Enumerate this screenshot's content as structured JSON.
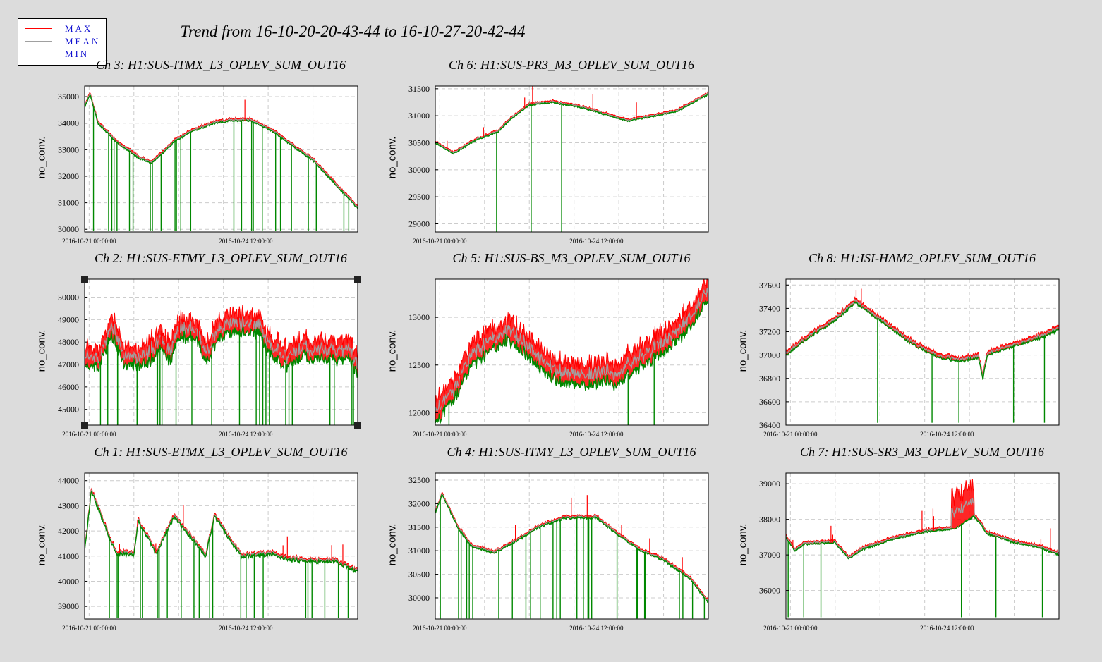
{
  "title": "Trend from 16-10-20-20-43-44 to 16-10-27-20-42-44",
  "legend": [
    {
      "label": "MAX",
      "color": "#ff0000"
    },
    {
      "label": "MEAN",
      "color": "#a0a0a0"
    },
    {
      "label": "MIN",
      "color": "#008800"
    }
  ],
  "colors": {
    "max": "#ff0000",
    "mean": "#a0a0a0",
    "min": "#008800",
    "grid": "#cccccc"
  },
  "chart_data": [
    {
      "type": "line",
      "channel": "Ch 3",
      "title": "Ch 3: H1:SUS-ITMX_L3_OPLEV_SUM_OUT16",
      "ylabel": "no_conv.",
      "xlim": [
        -0.1,
        6.0
      ],
      "ylim": [
        29900,
        35400
      ],
      "yticks": [
        30000,
        31000,
        32000,
        33000,
        34000,
        35000
      ],
      "xticks": [
        {
          "t": 0,
          "label": "2016-10-21 00:00:00"
        },
        {
          "t": 3.5,
          "label": "2016-10-24 12:00:00"
        }
      ],
      "band": 60,
      "noise": 60,
      "spikes_up": 1,
      "spikes_down": 26,
      "spike_floor": 29950,
      "min_profile": [
        [
          -0.1,
          34600
        ],
        [
          0.02,
          35100
        ],
        [
          0.2,
          34000
        ],
        [
          0.6,
          33300
        ],
        [
          1.1,
          32700
        ],
        [
          1.4,
          32500
        ],
        [
          1.6,
          32800
        ],
        [
          1.9,
          33300
        ],
        [
          2.3,
          33700
        ],
        [
          2.8,
          34000
        ],
        [
          3.2,
          34100
        ],
        [
          3.6,
          34100
        ],
        [
          4.1,
          33700
        ],
        [
          4.5,
          33200
        ],
        [
          5.0,
          32600
        ],
        [
          5.5,
          31700
        ],
        [
          6.0,
          30800
        ]
      ]
    },
    {
      "type": "line",
      "channel": "Ch 6",
      "title": "Ch 6: H1:SUS-PR3_M3_OPLEV_SUM_OUT16",
      "ylabel": "no_conv.",
      "xlim": [
        -0.1,
        6.0
      ],
      "ylim": [
        28850,
        31550
      ],
      "yticks": [
        29000,
        29500,
        30000,
        30500,
        31000,
        31500
      ],
      "xticks": [
        {
          "t": 0,
          "label": "2016-10-21 00:00:00"
        },
        {
          "t": 3.5,
          "label": "2016-10-24 12:00:00"
        }
      ],
      "band": 25,
      "noise": 25,
      "spikes_up": 6,
      "spikes_down": 3,
      "spike_floor": 28850,
      "min_profile": [
        [
          -0.1,
          30500
        ],
        [
          0.3,
          30300
        ],
        [
          0.8,
          30550
        ],
        [
          1.3,
          30700
        ],
        [
          1.6,
          30950
        ],
        [
          2.0,
          31200
        ],
        [
          2.5,
          31250
        ],
        [
          3.2,
          31150
        ],
        [
          3.8,
          31000
        ],
        [
          4.2,
          30900
        ],
        [
          4.8,
          31000
        ],
        [
          5.3,
          31080
        ],
        [
          6.0,
          31400
        ]
      ]
    },
    {
      "type": "line",
      "channel": "Ch 2",
      "title": "Ch 2: H1:SUS-ETMY_L3_OPLEV_SUM_OUT16",
      "ylabel": "no_conv.",
      "xlim": [
        -0.1,
        6.0
      ],
      "ylim": [
        44300,
        50800
      ],
      "yticks": [
        45000,
        46000,
        47000,
        48000,
        49000,
        50000
      ],
      "xticks": [
        {
          "t": 0,
          "label": "2016-10-21 00:00:00"
        },
        {
          "t": 3.5,
          "label": "2016-10-24 12:00:00"
        }
      ],
      "band": 600,
      "noise": 500,
      "spikes_up": 14,
      "spikes_down": 26,
      "spike_floor": 44300,
      "min_profile": [
        [
          -0.1,
          47000
        ],
        [
          0.2,
          46900
        ],
        [
          0.5,
          48400
        ],
        [
          0.8,
          47000
        ],
        [
          1.3,
          47100
        ],
        [
          1.6,
          47800
        ],
        [
          1.8,
          47200
        ],
        [
          2.0,
          48300
        ],
        [
          2.4,
          48300
        ],
        [
          2.6,
          47100
        ],
        [
          2.9,
          48300
        ],
        [
          3.3,
          48500
        ],
        [
          3.8,
          48500
        ],
        [
          4.0,
          47600
        ],
        [
          4.4,
          47000
        ],
        [
          4.8,
          47400
        ],
        [
          5.3,
          47300
        ],
        [
          5.8,
          47300
        ],
        [
          6.0,
          46600
        ]
      ]
    },
    {
      "type": "line",
      "channel": "Ch 5",
      "title": "Ch 5: H1:SUS-BS_M3_OPLEV_SUM_OUT16",
      "ylabel": "no_conv.",
      "xlim": [
        -0.1,
        6.0
      ],
      "ylim": [
        11870,
        13400
      ],
      "yticks": [
        12000,
        12500,
        13000
      ],
      "xticks": [
        {
          "t": 0,
          "label": "2016-10-21 00:00:00"
        },
        {
          "t": 3.5,
          "label": "2016-10-24 12:00:00"
        }
      ],
      "band": 160,
      "noise": 120,
      "spikes_up": 2,
      "spikes_down": 3,
      "spike_floor": 11870,
      "min_profile": [
        [
          -0.1,
          11900
        ],
        [
          0.3,
          12150
        ],
        [
          0.7,
          12500
        ],
        [
          1.2,
          12700
        ],
        [
          1.5,
          12780
        ],
        [
          1.9,
          12650
        ],
        [
          2.3,
          12450
        ],
        [
          2.7,
          12330
        ],
        [
          3.2,
          12300
        ],
        [
          3.7,
          12350
        ],
        [
          4.0,
          12300
        ],
        [
          4.3,
          12450
        ],
        [
          4.8,
          12600
        ],
        [
          5.4,
          12800
        ],
        [
          6.0,
          13200
        ]
      ]
    },
    {
      "type": "line",
      "channel": "Ch 8",
      "title": "Ch 8: H1:ISI-HAM2_OPLEV_SUM_OUT16",
      "ylabel": "no_conv.",
      "xlim": [
        -0.1,
        6.0
      ],
      "ylim": [
        36400,
        37650
      ],
      "yticks": [
        36400,
        36600,
        36800,
        37000,
        37200,
        37400,
        37600
      ],
      "xticks": [
        {
          "t": 0,
          "label": "2016-10-21 00:00:00"
        },
        {
          "t": 3.5,
          "label": "2016-10-24 12:00:00"
        }
      ],
      "band": 25,
      "noise": 20,
      "spikes_up": 2,
      "spikes_down": 5,
      "spike_floor": 36420,
      "min_profile": [
        [
          -0.1,
          37000
        ],
        [
          0.4,
          37150
        ],
        [
          1.0,
          37300
        ],
        [
          1.45,
          37450
        ],
        [
          2.0,
          37300
        ],
        [
          2.7,
          37100
        ],
        [
          3.3,
          36980
        ],
        [
          3.8,
          36950
        ],
        [
          4.2,
          36980
        ],
        [
          4.3,
          36800
        ],
        [
          4.4,
          37000
        ],
        [
          5.0,
          37080
        ],
        [
          5.6,
          37150
        ],
        [
          6.0,
          37220
        ]
      ]
    },
    {
      "type": "line",
      "channel": "Ch 1",
      "title": "Ch 1: H1:SUS-ETMX_L3_OPLEV_SUM_OUT16",
      "ylabel": "no_conv.",
      "xlim": [
        -0.1,
        6.0
      ],
      "ylim": [
        38500,
        44300
      ],
      "yticks": [
        39000,
        40000,
        41000,
        42000,
        43000,
        44000
      ],
      "xticks": [
        {
          "t": 0,
          "label": "2016-10-21 00:00:00"
        },
        {
          "t": 3.5,
          "label": "2016-10-24 12:00:00"
        }
      ],
      "band": 40,
      "noise": 150,
      "spikes_up": 8,
      "spikes_down": 24,
      "spike_floor": 38550,
      "min_profile": [
        [
          -0.1,
          41200
        ],
        [
          0.05,
          43600
        ],
        [
          0.6,
          41100
        ],
        [
          1.0,
          41100
        ],
        [
          1.1,
          42400
        ],
        [
          1.5,
          41100
        ],
        [
          1.9,
          42600
        ],
        [
          2.6,
          41000
        ],
        [
          2.8,
          42600
        ],
        [
          3.4,
          41000
        ],
        [
          4.1,
          41100
        ],
        [
          4.4,
          40900
        ],
        [
          5.0,
          40800
        ],
        [
          5.5,
          40800
        ],
        [
          6.0,
          40400
        ]
      ]
    },
    {
      "type": "line",
      "channel": "Ch 4",
      "title": "Ch 4: H1:SUS-ITMY_L3_OPLEV_SUM_OUT16",
      "ylabel": "no_conv.",
      "xlim": [
        -0.1,
        6.0
      ],
      "ylim": [
        29550,
        32650
      ],
      "yticks": [
        30000,
        30500,
        31000,
        31500,
        32000,
        32500
      ],
      "xticks": [
        {
          "t": 0,
          "label": "2016-10-21 00:00:00"
        },
        {
          "t": 3.5,
          "label": "2016-10-24 12:00:00"
        }
      ],
      "band": 30,
      "noise": 40,
      "spikes_up": 6,
      "spikes_down": 28,
      "spike_floor": 29560,
      "min_profile": [
        [
          -0.1,
          31800
        ],
        [
          0.05,
          32200
        ],
        [
          0.4,
          31500
        ],
        [
          0.7,
          31100
        ],
        [
          1.2,
          30950
        ],
        [
          1.7,
          31200
        ],
        [
          2.2,
          31500
        ],
        [
          2.8,
          31700
        ],
        [
          3.5,
          31700
        ],
        [
          3.9,
          31400
        ],
        [
          4.5,
          31000
        ],
        [
          5.0,
          30800
        ],
        [
          5.6,
          30400
        ],
        [
          6.0,
          29900
        ]
      ]
    },
    {
      "type": "line",
      "channel": "Ch 7",
      "title": "Ch 7: H1:SUS-SR3_M3_OPLEV_SUM_OUT16",
      "ylabel": "no_conv.",
      "xlim": [
        -0.1,
        6.0
      ],
      "ylim": [
        35200,
        39300
      ],
      "yticks": [
        36000,
        37000,
        38000,
        39000
      ],
      "xticks": [
        {
          "t": 0,
          "label": "2016-10-21 00:00:00"
        },
        {
          "t": 3.5,
          "label": "2016-10-24 12:00:00"
        }
      ],
      "band": 50,
      "noise": 50,
      "spikes_up": 8,
      "spikes_down": 6,
      "spike_floor": 35250,
      "min_profile": [
        [
          -0.1,
          37500
        ],
        [
          0.1,
          37100
        ],
        [
          0.3,
          37300
        ],
        [
          1.0,
          37350
        ],
        [
          1.3,
          36900
        ],
        [
          1.6,
          37150
        ],
        [
          2.3,
          37450
        ],
        [
          3.0,
          37650
        ],
        [
          3.7,
          37750
        ],
        [
          4.1,
          38100
        ],
        [
          4.4,
          37600
        ],
        [
          5.0,
          37350
        ],
        [
          5.6,
          37200
        ],
        [
          6.0,
          37000
        ]
      ],
      "band_bump": [
        3.6,
        4.1,
        1100
      ]
    }
  ]
}
